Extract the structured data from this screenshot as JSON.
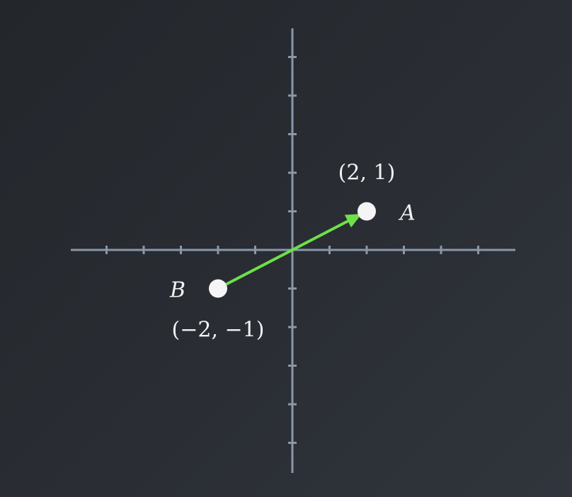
{
  "diagram": {
    "x_range": [
      -5,
      5
    ],
    "y_range": [
      -5,
      5
    ],
    "tick_step": 1,
    "points": [
      {
        "name": "A",
        "x": 2,
        "y": 1,
        "coord_label": "(2, 1)"
      },
      {
        "name": "B",
        "x": -2,
        "y": -1,
        "coord_label": "(−2, −1)"
      }
    ],
    "vector": {
      "from": "B",
      "to": "A"
    },
    "colors": {
      "axis": "#8a97a8",
      "vector": "#6ee04a",
      "point": "#f5f5f5",
      "text": "#f2f2f2"
    }
  }
}
